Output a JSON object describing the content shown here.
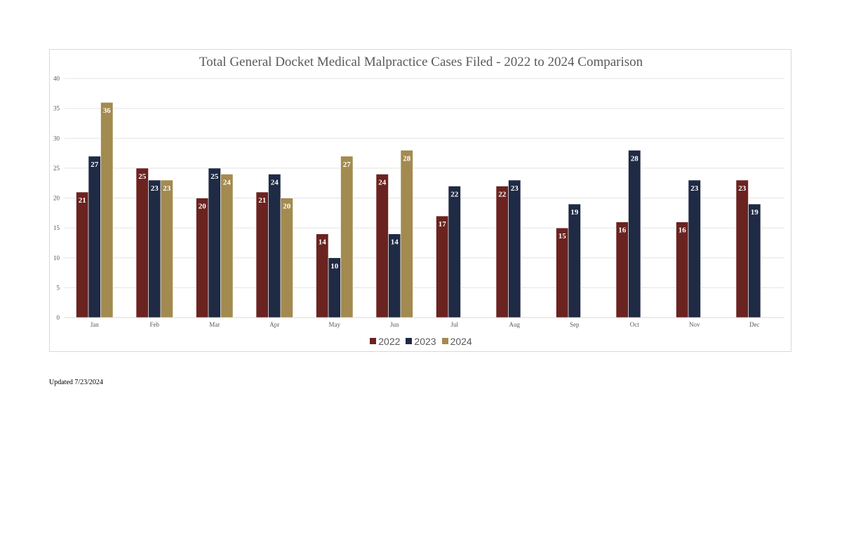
{
  "chart_data": {
    "type": "bar",
    "title": "Total General Docket Medical Malpractice Cases Filed - 2022 to 2024 Comparison",
    "xlabel": "",
    "ylabel": "",
    "ylim": [
      0,
      40
    ],
    "yticks": [
      0,
      5,
      10,
      15,
      20,
      25,
      30,
      35,
      40
    ],
    "grid": true,
    "legend_position": "bottom",
    "categories": [
      "Jan",
      "Feb",
      "Mar",
      "Apr",
      "May",
      "Jun",
      "Jul",
      "Aug",
      "Sep",
      "Oct",
      "Nov",
      "Dec"
    ],
    "series": [
      {
        "name": "2022",
        "color": "#6b2320",
        "values": [
          21,
          25,
          20,
          21,
          14,
          24,
          17,
          22,
          15,
          16,
          16,
          23
        ]
      },
      {
        "name": "2023",
        "color": "#1f2a44",
        "values": [
          27,
          23,
          25,
          24,
          10,
          14,
          22,
          23,
          19,
          28,
          23,
          19
        ]
      },
      {
        "name": "2024",
        "color": "#a38a4f",
        "values": [
          36,
          23,
          24,
          20,
          27,
          28,
          null,
          null,
          null,
          null,
          null,
          null
        ]
      }
    ]
  },
  "footnote": "Updated 7/23/2024"
}
